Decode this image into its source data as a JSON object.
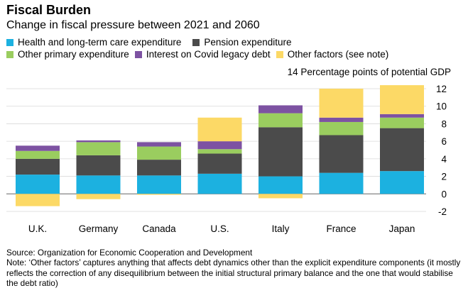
{
  "header": {
    "title": "Fiscal Burden",
    "subtitle": "Change in fiscal pressure between 2021 and 2060"
  },
  "legend": {
    "health": "Health and long-term care expenditure",
    "pension": "Pension expenditure",
    "other_primary": "Other primary expenditure",
    "covid": "Interest on Covid legacy debt",
    "other_factors": "Other factors (see note)"
  },
  "footer": {
    "source": "Source: Organization for Economic Cooperation and Development",
    "note": "Note: ‘Other factors’ captures anything that affects debt dynamics other than the explicit expenditure components (it mostly reflects the correction of any disequilibrium between the initial structural primary balance and the one that would stabilise the debt ratio)"
  },
  "chart_data": {
    "type": "bar",
    "stacked": true,
    "title": "Fiscal Burden",
    "subtitle": "Change in fiscal pressure between 2021 and 2060",
    "ylabel": "Percentage points of potential GDP",
    "top_tick_label": "14 Percentage points of potential GDP",
    "ylim": [
      -2,
      14
    ],
    "yticks": [
      -2,
      0,
      2,
      4,
      6,
      8,
      10,
      12
    ],
    "grid": true,
    "axis_side": "right",
    "categories": [
      "U.K.",
      "Germany",
      "Canada",
      "U.S.",
      "Italy",
      "France",
      "Japan"
    ],
    "series": [
      {
        "name": "Health and long-term care expenditure",
        "color": "#1cb1e0",
        "values": [
          2.2,
          2.1,
          2.1,
          2.3,
          2.0,
          2.4,
          2.6
        ]
      },
      {
        "name": "Pension expenditure",
        "color": "#4b4b4b",
        "values": [
          1.8,
          2.3,
          1.8,
          2.3,
          5.6,
          4.3,
          4.9
        ]
      },
      {
        "name": "Other primary expenditure",
        "color": "#9acd5f",
        "values": [
          0.9,
          1.5,
          1.5,
          0.5,
          1.6,
          1.5,
          1.2
        ]
      },
      {
        "name": "Interest on Covid legacy debt",
        "color": "#7d52a2",
        "values": [
          0.6,
          0.2,
          0.5,
          0.9,
          0.9,
          0.5,
          0.4
        ]
      },
      {
        "name": "Other factors (see note)",
        "color": "#fcd966",
        "values": [
          -1.4,
          -0.6,
          -0.1,
          2.7,
          -0.5,
          3.3,
          3.3
        ]
      }
    ]
  }
}
